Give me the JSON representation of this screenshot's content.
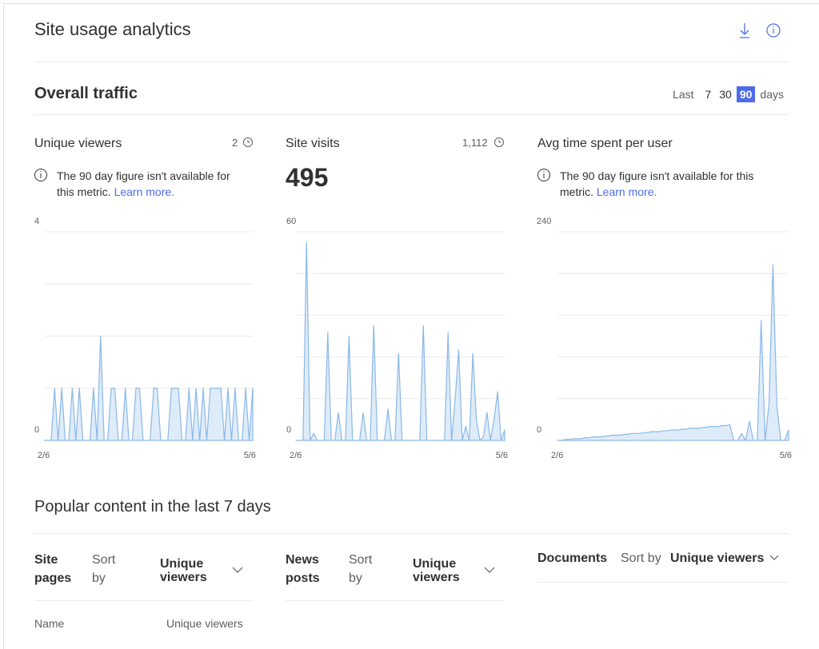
{
  "header": {
    "title": "Site usage analytics"
  },
  "traffic": {
    "title": "Overall traffic",
    "range": {
      "prefix": "Last",
      "options": [
        "7",
        "30",
        "90"
      ],
      "selected": "90",
      "suffix": "days"
    }
  },
  "chart_data": [
    {
      "type": "area",
      "title": "Unique viewers",
      "total": 2,
      "notice": "The 90 day figure isn't available for this metric.",
      "link": "Learn more.",
      "color": "#8ab8e8",
      "fill": "#deecf9",
      "ylim": [
        0,
        4
      ],
      "yticks": [
        0,
        4
      ],
      "ygrid": [
        0,
        1,
        2,
        3,
        4
      ],
      "xlabels": [
        "2/6",
        "5/6"
      ],
      "values": [
        0,
        0,
        0,
        1,
        0,
        1,
        0,
        0,
        1,
        0,
        1,
        0,
        0,
        0,
        1,
        0,
        2,
        0,
        0,
        1,
        1,
        0,
        0,
        1,
        0,
        0,
        1,
        1,
        0,
        0,
        0,
        1,
        1,
        0,
        0,
        0,
        1,
        1,
        1,
        0,
        0,
        1,
        0,
        1,
        0,
        1,
        0,
        1,
        1,
        1,
        1,
        0,
        1,
        0,
        1,
        0,
        0,
        1,
        0,
        1
      ]
    },
    {
      "type": "area",
      "title": "Site visits",
      "total": "1,112",
      "headline": 495,
      "color": "#8ab8e8",
      "fill": "#deecf9",
      "ylim": [
        0,
        60
      ],
      "yticks": [
        0,
        60
      ],
      "ygrid": [
        0,
        12,
        24,
        36,
        48,
        60
      ],
      "xlabels": [
        "2/6",
        "5/6"
      ],
      "values": [
        0,
        0,
        0,
        57,
        0,
        2,
        0,
        0,
        0,
        31,
        0,
        0,
        8,
        0,
        0,
        30,
        0,
        0,
        0,
        8,
        0,
        0,
        33,
        0,
        0,
        0,
        9,
        0,
        0,
        25,
        0,
        0,
        0,
        0,
        0,
        0,
        33,
        0,
        0,
        0,
        0,
        0,
        0,
        31,
        0,
        12,
        26,
        0,
        4,
        0,
        25,
        6,
        0,
        1,
        8,
        0,
        6,
        14,
        0,
        3
      ]
    },
    {
      "type": "area",
      "title": "Avg time spent per user",
      "notice": "The 90 day figure isn't available for this metric.",
      "link": "Learn more.",
      "color": "#8ab8e8",
      "fill": "#deecf9",
      "ylim": [
        0,
        240
      ],
      "yticks": [
        0,
        240
      ],
      "ygrid": [
        0,
        48,
        96,
        144,
        192,
        240
      ],
      "xlabels": [
        "2/6",
        "5/6"
      ],
      "values": [
        0,
        0,
        1,
        1,
        2,
        2,
        2,
        3,
        3,
        4,
        4,
        4,
        5,
        5,
        6,
        6,
        6,
        7,
        7,
        8,
        8,
        8,
        9,
        9,
        10,
        10,
        10,
        11,
        11,
        12,
        12,
        12,
        13,
        13,
        14,
        14,
        14,
        15,
        15,
        16,
        16,
        16,
        17,
        17,
        18,
        0,
        0,
        8,
        0,
        22,
        0,
        0,
        138,
        0,
        42,
        202,
        40,
        0,
        0,
        12
      ]
    }
  ],
  "popular": {
    "title": "Popular content in the last 7 days",
    "lists": [
      {
        "name": "Site pages",
        "sort_label": "Sort by",
        "sort": "Unique viewers"
      },
      {
        "name": "News posts",
        "sort_label": "Sort by",
        "sort": "Unique viewers"
      },
      {
        "name": "Documents",
        "sort_label": "Sort by",
        "sort": "Unique viewers"
      }
    ],
    "columns": [
      "Name",
      "Unique viewers"
    ]
  }
}
